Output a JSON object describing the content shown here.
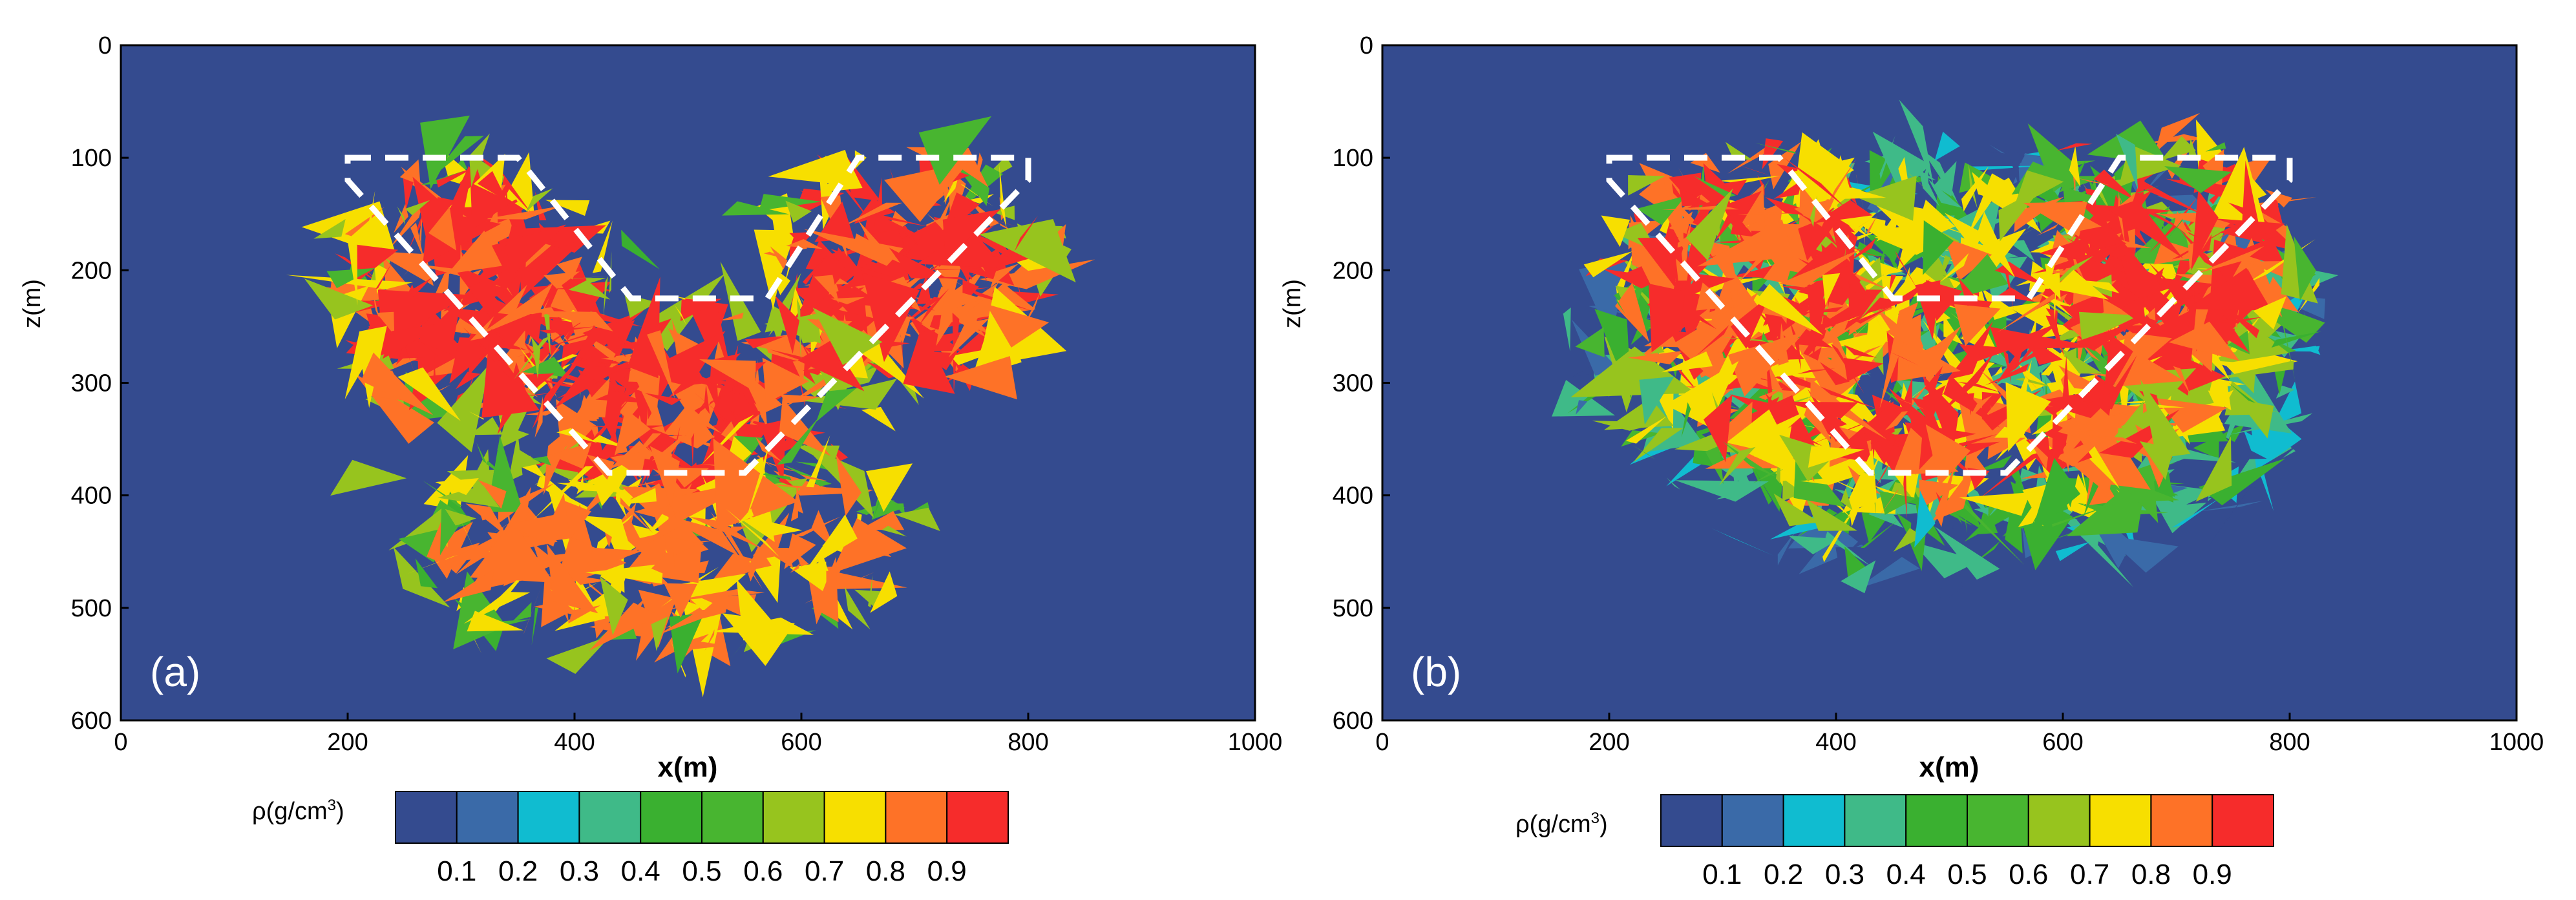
{
  "chart_data": [
    {
      "type": "heatmap",
      "panel_label": "(a)",
      "xlabel": "x(m)",
      "ylabel": "z(m)",
      "xlim": [
        0,
        1000
      ],
      "ylim": [
        0,
        600
      ],
      "y_inverted": true,
      "x_ticks": [
        "0",
        "200",
        "400",
        "600",
        "800",
        "1000"
      ],
      "y_ticks": [
        "0",
        "100",
        "200",
        "300",
        "400",
        "500",
        "600"
      ],
      "background_value": 0.05,
      "anomaly_outline": [
        [
          200,
          100
        ],
        [
          350,
          100
        ],
        [
          450,
          225
        ],
        [
          570,
          225
        ],
        [
          650,
          100
        ],
        [
          800,
          100
        ],
        [
          800,
          120
        ],
        [
          550,
          380
        ],
        [
          430,
          380
        ],
        [
          200,
          120
        ]
      ],
      "regions": [
        {
          "name": "core-left",
          "center": [
            310,
            220
          ],
          "radius": [
            115,
            115
          ],
          "value": 0.92
        },
        {
          "name": "core-right",
          "center": [
            690,
            200
          ],
          "radius": [
            120,
            105
          ],
          "value": 0.92
        },
        {
          "name": "core-middle",
          "center": [
            500,
            320
          ],
          "radius": [
            160,
            100
          ],
          "value": 0.92
        },
        {
          "name": "fringe-lower",
          "center": [
            480,
            440
          ],
          "radius": [
            220,
            100
          ],
          "value": 0.82
        }
      ],
      "scatter_cells": [
        {
          "x": 340,
          "y": 110,
          "v": 0.6
        },
        {
          "x": 290,
          "y": 95,
          "v": 0.55
        },
        {
          "x": 380,
          "y": 150,
          "v": 0.65
        },
        {
          "x": 470,
          "y": 170,
          "v": 0.45
        },
        {
          "x": 560,
          "y": 170,
          "v": 0.55
        },
        {
          "x": 610,
          "y": 120,
          "v": 0.75
        },
        {
          "x": 740,
          "y": 90,
          "v": 0.5
        },
        {
          "x": 230,
          "y": 290,
          "v": 0.75
        },
        {
          "x": 220,
          "y": 400,
          "v": 0.6
        },
        {
          "x": 300,
          "y": 470,
          "v": 0.82
        },
        {
          "x": 330,
          "y": 520,
          "v": 0.75
        },
        {
          "x": 420,
          "y": 500,
          "v": 0.65
        },
        {
          "x": 500,
          "y": 520,
          "v": 0.82
        },
        {
          "x": 560,
          "y": 500,
          "v": 0.75
        },
        {
          "x": 680,
          "y": 390,
          "v": 0.75
        },
        {
          "x": 760,
          "y": 300,
          "v": 0.82
        },
        {
          "x": 790,
          "y": 240,
          "v": 0.85
        },
        {
          "x": 460,
          "y": 260,
          "v": 0.7
        },
        {
          "x": 400,
          "y": 200,
          "v": 0.6
        },
        {
          "x": 640,
          "y": 250,
          "v": 0.65
        },
        {
          "x": 380,
          "y": 420,
          "v": 0.82
        },
        {
          "x": 620,
          "y": 440,
          "v": 0.75
        },
        {
          "x": 270,
          "y": 430,
          "v": 0.55
        },
        {
          "x": 700,
          "y": 430,
          "v": 0.6
        }
      ]
    },
    {
      "type": "heatmap",
      "panel_label": "(b)",
      "xlabel": "x(m)",
      "ylabel": "z(m)",
      "xlim": [
        0,
        1000
      ],
      "ylim": [
        0,
        600
      ],
      "y_inverted": true,
      "x_ticks": [
        "0",
        "200",
        "400",
        "600",
        "800",
        "1000"
      ],
      "y_ticks": [
        "0",
        "100",
        "200",
        "300",
        "400",
        "500",
        "600"
      ],
      "background_value": 0.05,
      "anomaly_outline": [
        [
          200,
          100
        ],
        [
          350,
          100
        ],
        [
          450,
          225
        ],
        [
          570,
          225
        ],
        [
          650,
          100
        ],
        [
          800,
          100
        ],
        [
          800,
          120
        ],
        [
          550,
          380
        ],
        [
          430,
          380
        ],
        [
          200,
          120
        ]
      ],
      "regions": [
        {
          "name": "rim-outer",
          "center": [
            500,
            280
          ],
          "radius": [
            330,
            190
          ],
          "value": 0.4
        },
        {
          "name": "rim-inner",
          "center": [
            500,
            270
          ],
          "radius": [
            305,
            165
          ],
          "value": 0.75
        },
        {
          "name": "core-left",
          "center": [
            320,
            200
          ],
          "radius": [
            120,
            110
          ],
          "value": 0.92
        },
        {
          "name": "core-right",
          "center": [
            690,
            190
          ],
          "radius": [
            115,
            100
          ],
          "value": 0.92
        },
        {
          "name": "core-middle",
          "center": [
            500,
            300
          ],
          "radius": [
            210,
            110
          ],
          "value": 0.92
        }
      ],
      "scatter_cells": [
        {
          "x": 300,
          "y": 110,
          "v": 0.55
        },
        {
          "x": 400,
          "y": 150,
          "v": 0.6
        },
        {
          "x": 480,
          "y": 180,
          "v": 0.45
        },
        {
          "x": 560,
          "y": 170,
          "v": 0.75
        },
        {
          "x": 640,
          "y": 110,
          "v": 0.35
        },
        {
          "x": 720,
          "y": 100,
          "v": 0.55
        },
        {
          "x": 230,
          "y": 220,
          "v": 0.55
        },
        {
          "x": 250,
          "y": 330,
          "v": 0.45
        },
        {
          "x": 330,
          "y": 390,
          "v": 0.65
        },
        {
          "x": 420,
          "y": 410,
          "v": 0.45
        },
        {
          "x": 520,
          "y": 440,
          "v": 0.35
        },
        {
          "x": 620,
          "y": 420,
          "v": 0.55
        },
        {
          "x": 720,
          "y": 370,
          "v": 0.65
        },
        {
          "x": 780,
          "y": 280,
          "v": 0.45
        },
        {
          "x": 790,
          "y": 200,
          "v": 0.55
        },
        {
          "x": 360,
          "y": 240,
          "v": 0.75
        },
        {
          "x": 450,
          "y": 250,
          "v": 0.65
        },
        {
          "x": 620,
          "y": 240,
          "v": 0.75
        },
        {
          "x": 560,
          "y": 330,
          "v": 0.75
        },
        {
          "x": 400,
          "y": 330,
          "v": 0.85
        },
        {
          "x": 300,
          "y": 160,
          "v": 0.65
        },
        {
          "x": 680,
          "y": 150,
          "v": 0.45
        },
        {
          "x": 460,
          "y": 420,
          "v": 0.25
        },
        {
          "x": 580,
          "y": 400,
          "v": 0.45
        }
      ]
    }
  ],
  "colorbar": {
    "label": "ρ(g/cm³)",
    "label_base": "ρ(g/cm",
    "label_sup": "3",
    "label_close": ")",
    "tick_labels": [
      "0.1",
      "0.2",
      "0.3",
      "0.4",
      "0.5",
      "0.6",
      "0.7",
      "0.8",
      "0.9"
    ],
    "bin_values": [
      0.05,
      0.15,
      0.25,
      0.35,
      0.45,
      0.55,
      0.65,
      0.75,
      0.85,
      0.95
    ],
    "bin_colors": [
      "#344b8f",
      "#3a6aa8",
      "#10bcd0",
      "#3fba88",
      "#3ab030",
      "#48b530",
      "#97c41e",
      "#f7df00",
      "#fe7227",
      "#f62c2b"
    ]
  },
  "colors": {
    "background_field": "#344b8f",
    "outline": "#ffffff",
    "axis": "#000000"
  }
}
